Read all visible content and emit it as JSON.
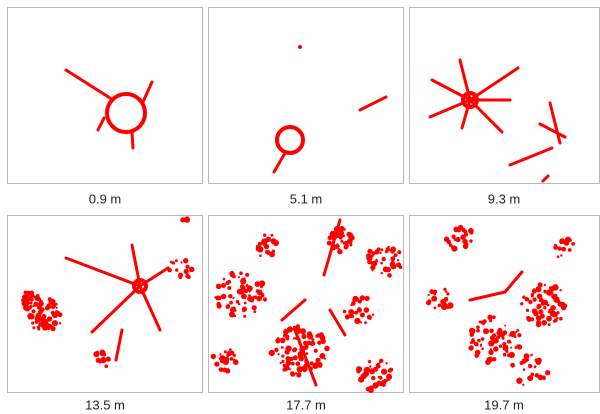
{
  "panels": [
    {
      "label": "0.9 m"
    },
    {
      "label": "5.1 m"
    },
    {
      "label": "9.3 m"
    },
    {
      "label": "13.5 m"
    },
    {
      "label": "17.7 m"
    },
    {
      "label": "19.7 m"
    }
  ]
}
